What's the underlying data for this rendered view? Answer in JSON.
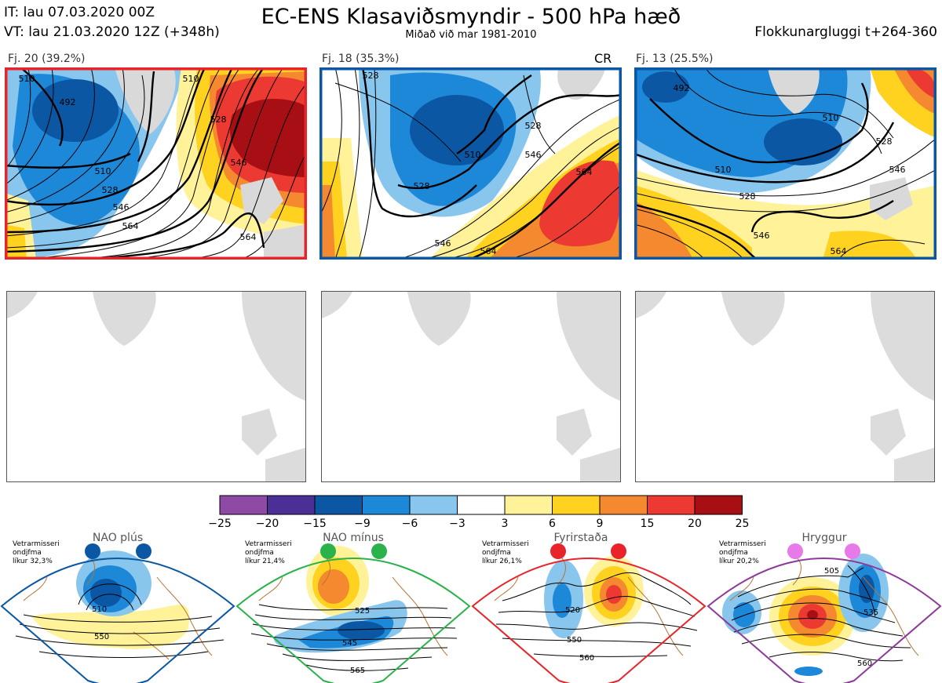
{
  "header": {
    "it_line": "IT: lau 07.03.2020 00Z",
    "vt_line": "VT: lau 21.03.2020 12Z  (+348h)",
    "title": "EC-ENS Klasaviðsmyndir - 500 hPa hæð",
    "subtitle": "Miðað við mar 1981-2010",
    "window": "Flokkunargluggi t+264-360"
  },
  "panels": [
    {
      "label": "Fj. 20 (39.2%)",
      "tag": "",
      "border": "#e8242a",
      "contours": [
        "510",
        "492",
        "510",
        "528",
        "546",
        "564",
        "564",
        "528",
        "546",
        "510"
      ]
    },
    {
      "label": "Fj. 18 (35.3%)",
      "tag": "CR",
      "border": "#0b57a4",
      "contours": [
        "528",
        "510",
        "528",
        "546",
        "564",
        "546",
        "564",
        "528"
      ]
    },
    {
      "label": "Fj. 13 (25.5%)",
      "tag": "",
      "border": "#0b57a4",
      "contours": [
        "492",
        "510",
        "528",
        "510",
        "546",
        "528",
        "546",
        "564"
      ]
    }
  ],
  "colorbar": {
    "ticks": [
      "−25",
      "−20",
      "−15",
      "−9",
      "−6",
      "−3",
      "3",
      "6",
      "9",
      "15",
      "20",
      "25"
    ],
    "colors": [
      "#8e4aa4",
      "#4b2f96",
      "#0b57a4",
      "#1d88d8",
      "#88c6ee",
      "#ffffff",
      "#fff299",
      "#ffd21f",
      "#f4892f",
      "#ec3a32",
      "#a80f14"
    ]
  },
  "regimes": [
    {
      "name": "NAO plús",
      "caption": [
        "Vetrarmisseri",
        "ondjfma",
        "líkur 32,3%"
      ],
      "border": "#0b57a4",
      "dot": "#0b57a4",
      "labels": [
        "510",
        "550"
      ]
    },
    {
      "name": "NAO mínus",
      "caption": [
        "Vetrarmisseri",
        "ondjfma",
        "líkur 21,4%"
      ],
      "border": "#2bb24a",
      "dot": "#2bb24a",
      "labels": [
        "525",
        "545",
        "565"
      ]
    },
    {
      "name": "Fyrirstaða",
      "caption": [
        "Vetrarmisseri",
        "ondjfma",
        "líkur 26,1%"
      ],
      "border": "#e8242a",
      "dot": "#e8242a",
      "labels": [
        "520",
        "550",
        "560"
      ]
    },
    {
      "name": "Hryggur",
      "caption": [
        "Vetrarmisseri",
        "ondjfma",
        "líkur 20,2%"
      ],
      "border": "#8e3a9a",
      "dot": "#e879e8",
      "labels": [
        "505",
        "535",
        "560"
      ]
    }
  ]
}
